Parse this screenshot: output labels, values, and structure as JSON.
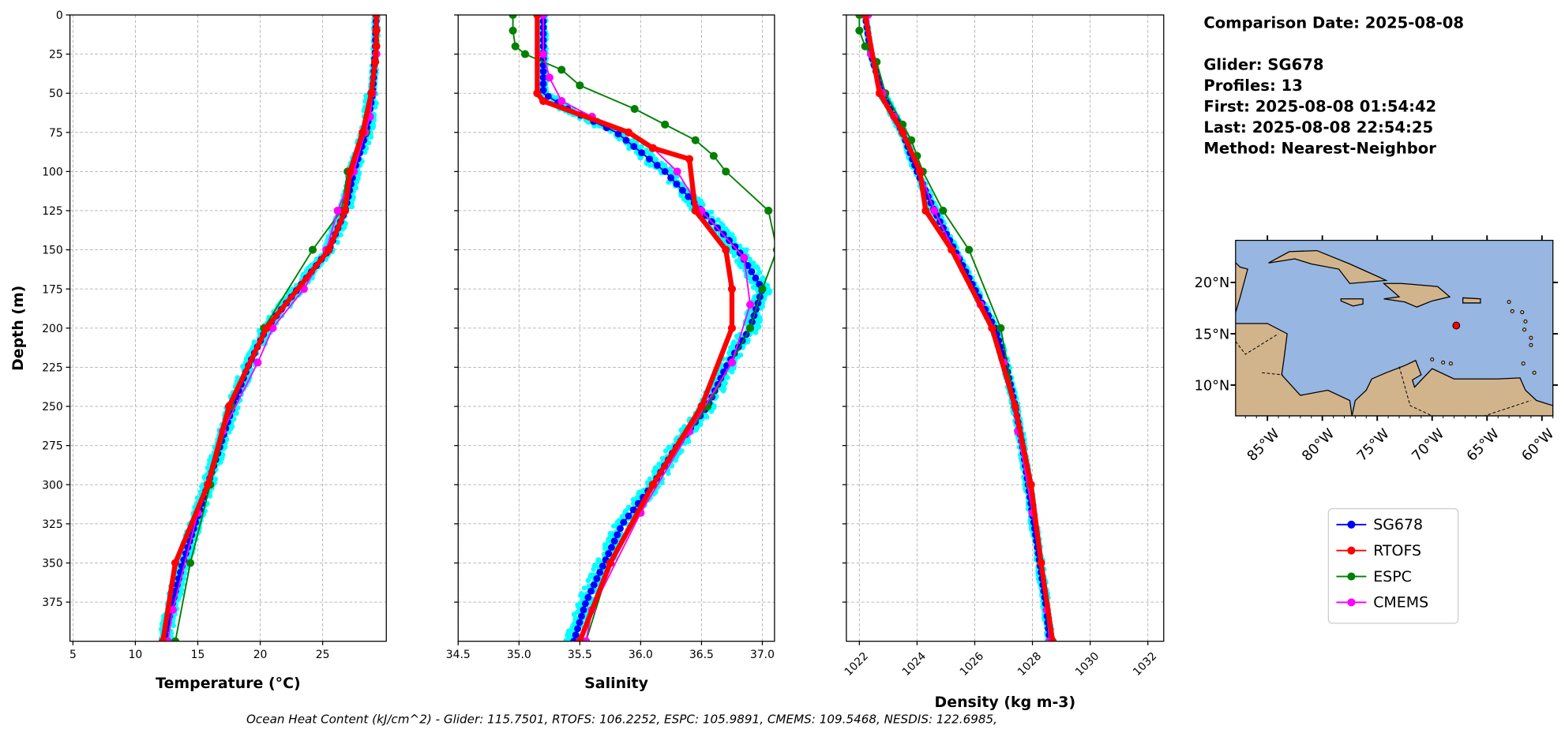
{
  "info": {
    "comparison_date": "Comparison Date: 2025-08-08",
    "glider": "Glider: SG678",
    "profiles": "Profiles: 13",
    "first": "First: 2025-08-08 01:54:42",
    "last": "Last: 2025-08-08 22:54:25",
    "method": "Method: Nearest-Neighbor"
  },
  "caption": "Ocean Heat Content (kJ/cm^2) - Glider: 115.7501,  RTOFS: 106.2252,  ESPC: 105.9891,  CMEMS: 109.5468,  NESDIS: 122.6985,",
  "colors": {
    "SG678": "#0000ff",
    "RTOFS": "#ff0000",
    "ESPC": "#008000",
    "CMEMS": "#ff00ff",
    "glider_scatter": "#00ffff",
    "ocean": "#97b6e1",
    "land": "#d2b48c"
  },
  "legend": {
    "position": "bottom-right",
    "entries": [
      "SG678",
      "RTOFS",
      "ESPC",
      "CMEMS"
    ]
  },
  "map": {
    "lat_ticks": [
      "20°N",
      "15°N",
      "10°N"
    ],
    "lat_values": [
      20,
      15,
      10
    ],
    "lon_ticks": [
      "85°W",
      "80°W",
      "75°W",
      "70°W",
      "65°W",
      "60°W"
    ],
    "lon_values": [
      -85,
      -80,
      -75,
      -70,
      -65,
      -60
    ],
    "extent": {
      "lon": [
        -87.9,
        -59.0
      ],
      "lat": [
        7.0,
        24.1
      ]
    },
    "glider_position": {
      "lon": -67.8,
      "lat": 15.8
    }
  },
  "chart_data": [
    {
      "type": "line",
      "xlabel": "Temperature (°C)",
      "ylabel": "Depth (m)",
      "xlim": [
        4.76,
        30.1
      ],
      "ylim": [
        400,
        0
      ],
      "grid": true,
      "xticks": [
        "5",
        "10",
        "15",
        "20",
        "25"
      ],
      "xtick_values": [
        5,
        10,
        15,
        20,
        25
      ],
      "yticks": [
        "0",
        "25",
        "50",
        "75",
        "100",
        "125",
        "150",
        "175",
        "200",
        "225",
        "250",
        "275",
        "300",
        "325",
        "350",
        "375"
      ],
      "ytick_values": [
        0,
        25,
        50,
        75,
        100,
        125,
        150,
        175,
        200,
        225,
        250,
        275,
        300,
        325,
        350,
        375
      ],
      "series": [
        {
          "name": "SG678",
          "depth": [
            0,
            25,
            50,
            75,
            100,
            125,
            150,
            175,
            200,
            225,
            250,
            275,
            300,
            325,
            350,
            375,
            400
          ],
          "values": [
            29.3,
            29.2,
            29.0,
            28.5,
            27.5,
            26.8,
            25.5,
            23.0,
            20.5,
            19.0,
            17.8,
            16.8,
            15.8,
            14.8,
            13.8,
            13.0,
            12.3
          ]
        },
        {
          "name": "RTOFS",
          "depth": [
            0,
            10,
            20,
            30,
            50,
            75,
            100,
            125,
            150,
            200,
            250,
            300,
            350,
            400
          ],
          "values": [
            29.3,
            29.3,
            29.3,
            29.2,
            28.9,
            28.2,
            27.2,
            26.8,
            25.5,
            20.5,
            17.5,
            15.8,
            13.2,
            12.2
          ]
        },
        {
          "name": "ESPC",
          "depth": [
            0,
            10,
            20,
            30,
            50,
            75,
            100,
            125,
            150,
            200,
            250,
            300,
            350,
            400
          ],
          "values": [
            29.3,
            29.3,
            29.3,
            29.2,
            29.0,
            28.5,
            27.0,
            26.5,
            24.2,
            20.3,
            17.7,
            16.0,
            14.4,
            13.2
          ]
        },
        {
          "name": "CMEMS",
          "depth": [
            0,
            25,
            50,
            65,
            75,
            100,
            125,
            150,
            175,
            200,
            222,
            266,
            318,
            380,
            400
          ],
          "values": [
            29.3,
            29.3,
            29.0,
            28.8,
            28.4,
            27.5,
            26.2,
            25.3,
            23.5,
            21.0,
            19.8,
            17.0,
            15.0,
            13.0,
            12.6
          ]
        }
      ]
    },
    {
      "type": "line",
      "xlabel": "Salinity",
      "xlim": [
        34.5,
        37.1
      ],
      "ylim": [
        400,
        0
      ],
      "grid": true,
      "xticks": [
        "34.5",
        "35.0",
        "35.5",
        "36.0",
        "36.5",
        "37.0"
      ],
      "xtick_values": [
        34.5,
        35.0,
        35.5,
        36.0,
        36.5,
        37.0
      ],
      "series": [
        {
          "name": "SG678",
          "depth": [
            0,
            25,
            50,
            60,
            75,
            100,
            125,
            150,
            175,
            200,
            225,
            250,
            275,
            300,
            325,
            350,
            375,
            400
          ],
          "values": [
            35.2,
            35.2,
            35.2,
            35.4,
            35.8,
            36.2,
            36.5,
            36.8,
            37.0,
            36.9,
            36.7,
            36.55,
            36.3,
            36.1,
            35.85,
            35.7,
            35.55,
            35.45
          ]
        },
        {
          "name": "RTOFS",
          "depth": [
            0,
            50,
            55,
            75,
            85,
            92,
            125,
            150,
            175,
            200,
            250,
            300,
            350,
            400
          ],
          "values": [
            35.15,
            35.15,
            35.2,
            35.9,
            36.1,
            36.4,
            36.45,
            36.7,
            36.75,
            36.75,
            36.5,
            36.1,
            35.75,
            35.5
          ]
        },
        {
          "name": "ESPC",
          "depth": [
            0,
            10,
            20,
            25,
            35,
            45,
            60,
            70,
            80,
            90,
            100,
            125,
            150,
            175,
            200,
            250,
            300,
            350,
            400
          ],
          "values": [
            34.95,
            34.95,
            34.97,
            35.05,
            35.35,
            35.5,
            35.95,
            36.2,
            36.45,
            36.6,
            36.7,
            37.05,
            37.12,
            37.0,
            36.9,
            36.55,
            36.1,
            35.75,
            35.55
          ]
        },
        {
          "name": "CMEMS",
          "depth": [
            0,
            25,
            40,
            55,
            65,
            75,
            85,
            100,
            125,
            155,
            185,
            222,
            266,
            318,
            380,
            400
          ],
          "values": [
            35.2,
            35.2,
            35.25,
            35.35,
            35.6,
            35.9,
            36.1,
            36.3,
            36.5,
            36.85,
            36.9,
            36.75,
            36.4,
            36.0,
            35.6,
            35.55
          ]
        }
      ]
    },
    {
      "type": "line",
      "xlabel": "Density (kg m-3)",
      "xlim": [
        1021.55,
        1032.55
      ],
      "ylim": [
        400,
        0
      ],
      "grid": true,
      "xticks": [
        "1022",
        "1024",
        "1026",
        "1028",
        "1030",
        "1032"
      ],
      "xtick_values": [
        1022,
        1024,
        1026,
        1028,
        1030,
        1032
      ],
      "series": [
        {
          "name": "SG678",
          "depth": [
            0,
            25,
            50,
            75,
            100,
            125,
            150,
            175,
            200,
            225,
            250,
            275,
            300,
            325,
            350,
            375,
            400
          ],
          "values": [
            1022.2,
            1022.4,
            1022.8,
            1023.5,
            1024.0,
            1024.6,
            1025.3,
            1026.0,
            1026.7,
            1027.1,
            1027.4,
            1027.65,
            1027.85,
            1028.05,
            1028.25,
            1028.45,
            1028.6
          ]
        },
        {
          "name": "RTOFS",
          "depth": [
            0,
            50,
            75,
            100,
            125,
            150,
            200,
            250,
            300,
            350,
            400
          ],
          "values": [
            1022.2,
            1022.7,
            1023.5,
            1024.1,
            1024.3,
            1025.2,
            1026.6,
            1027.4,
            1027.95,
            1028.3,
            1028.7
          ]
        },
        {
          "name": "ESPC",
          "depth": [
            0,
            10,
            20,
            30,
            50,
            70,
            80,
            90,
            100,
            125,
            150,
            200,
            250,
            300,
            350,
            400
          ],
          "values": [
            1022.0,
            1022.0,
            1022.2,
            1022.6,
            1022.9,
            1023.5,
            1023.8,
            1024.0,
            1024.2,
            1024.9,
            1025.8,
            1026.9,
            1027.4,
            1027.9,
            1028.3,
            1028.6
          ]
        },
        {
          "name": "CMEMS",
          "depth": [
            0,
            25,
            50,
            65,
            75,
            100,
            125,
            155,
            185,
            222,
            266,
            318,
            380,
            400
          ],
          "values": [
            1022.3,
            1022.4,
            1022.8,
            1023.2,
            1023.5,
            1024.1,
            1024.6,
            1025.4,
            1026.2,
            1027.0,
            1027.5,
            1028.0,
            1028.5,
            1028.6
          ]
        }
      ]
    }
  ]
}
